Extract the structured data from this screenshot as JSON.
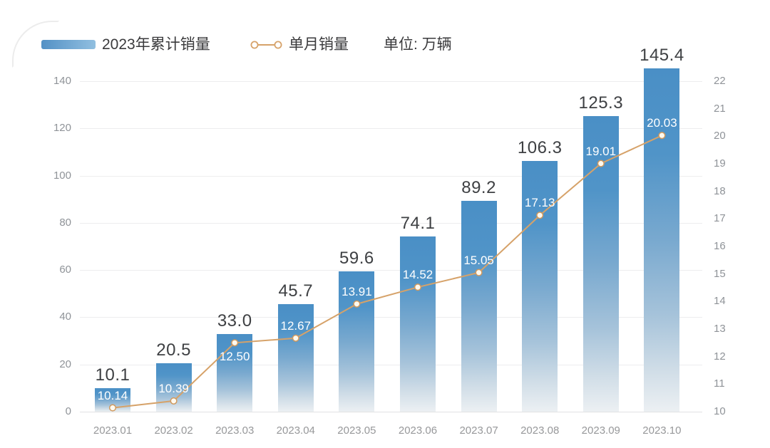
{
  "legend": {
    "bar_label": "2023年累计销量",
    "line_label": "单月销量",
    "unit_label": "单位: 万辆"
  },
  "colors": {
    "bar_top": "#4a8fc6",
    "bar_bottom": "#ecf0f3",
    "line": "#d6a269",
    "point_fill": "#fefaf0",
    "point_stroke": "#d0995e",
    "grid": "#ededee",
    "axis_text": "#8f9398",
    "value_text": "#3e4043",
    "monthly_label_text": "#ffffff"
  },
  "chart_data": {
    "type": "bar+line combo",
    "title": "",
    "unit": "万辆",
    "categories": [
      "2023.01",
      "2023.02",
      "2023.03",
      "2023.04",
      "2023.05",
      "2023.06",
      "2023.07",
      "2023.08",
      "2023.09",
      "2023.10"
    ],
    "series": [
      {
        "name": "2023年累计销量",
        "type": "bar",
        "axis": "left",
        "values": [
          10.1,
          20.5,
          33.0,
          45.7,
          59.6,
          74.1,
          89.2,
          106.3,
          125.3,
          145.4
        ],
        "labels": [
          "10.1",
          "20.5",
          "33.0",
          "45.7",
          "59.6",
          "74.1",
          "89.2",
          "106.3",
          "125.3",
          "145.4"
        ]
      },
      {
        "name": "单月销量",
        "type": "line",
        "axis": "right",
        "values": [
          10.14,
          10.39,
          12.5,
          12.67,
          13.91,
          14.52,
          15.05,
          17.13,
          19.01,
          20.03
        ],
        "labels": [
          "10.14",
          "10.39",
          "12.50",
          "12.67",
          "13.91",
          "14.52",
          "15.05",
          "17.13",
          "19.01",
          "20.03"
        ],
        "label_placement": [
          "above",
          "above",
          "below",
          "above",
          "above",
          "above",
          "above",
          "above",
          "above",
          "above"
        ]
      }
    ],
    "left_axis": {
      "min": 0,
      "max": 140,
      "ticks": [
        0,
        20,
        40,
        60,
        80,
        100,
        120,
        140
      ]
    },
    "right_axis": {
      "min": 10,
      "max": 22,
      "ticks": [
        10,
        11,
        12,
        13,
        14,
        15,
        16,
        17,
        18,
        19,
        20,
        21,
        22
      ]
    },
    "grid": "horizontal",
    "legend_position": "top-left"
  }
}
